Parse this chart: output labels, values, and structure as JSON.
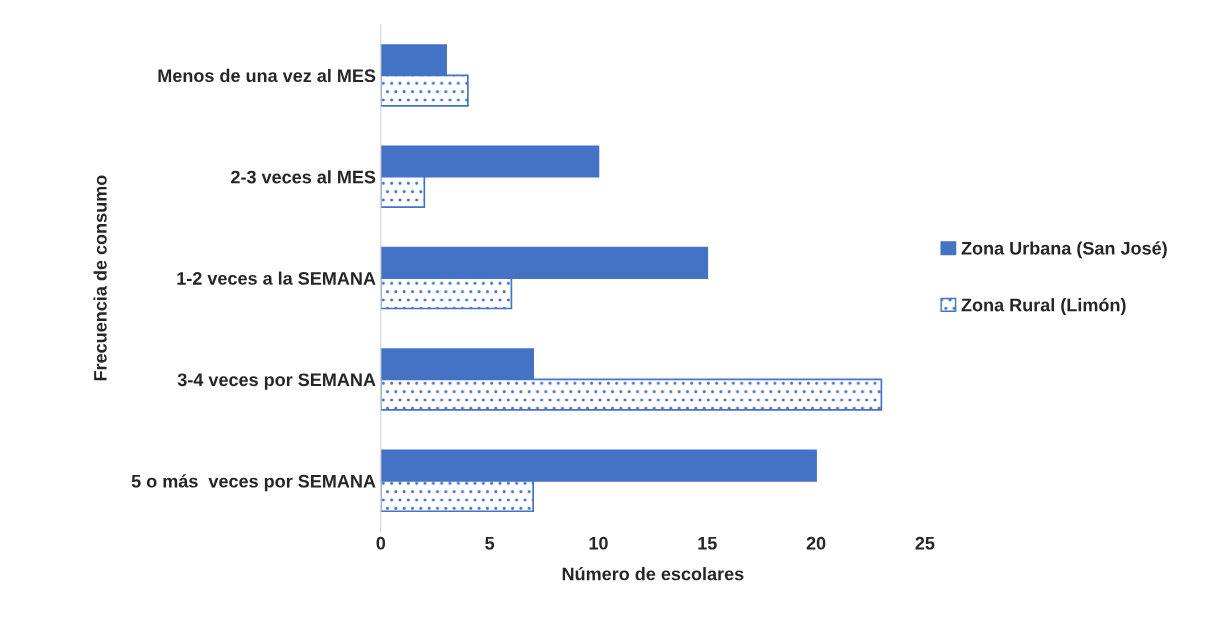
{
  "chart_data": {
    "type": "bar",
    "orientation": "horizontal",
    "xlabel": "Número de escolares",
    "ylabel": "Frecuencia de consumo",
    "categories": [
      "Menos de una vez al MES",
      "2-3 veces al MES",
      "1-2 veces a la SEMANA",
      "3-4 veces por SEMANA",
      "5 o más  veces por SEMANA"
    ],
    "series": [
      {
        "name": "Zona Urbana (San José)",
        "color": "#4472c4",
        "values": [
          3,
          10,
          15,
          7,
          20
        ]
      },
      {
        "name": "Zona Rural (Limón)",
        "color": "#4472c4",
        "values": [
          4,
          2,
          6,
          23,
          7
        ]
      }
    ],
    "xlim": [
      0,
      25
    ],
    "xticks": [
      0,
      5,
      10,
      15,
      20,
      25
    ],
    "grid": false,
    "legend": "right"
  }
}
